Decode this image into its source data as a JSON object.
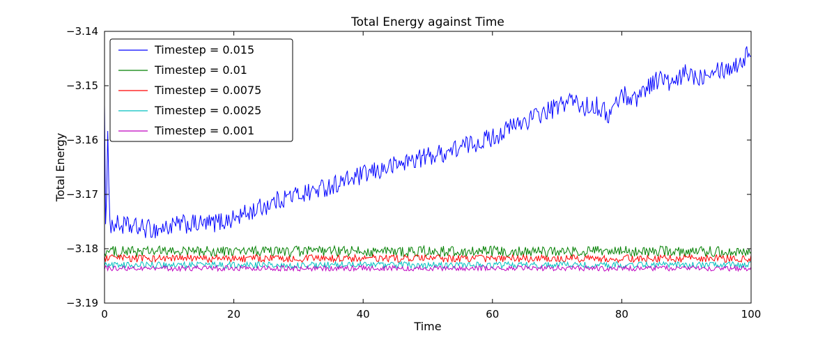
{
  "chart_data": {
    "type": "line",
    "title": "Total Energy against Time",
    "xlabel": "Time",
    "ylabel": "Total Energy",
    "xlim": [
      0,
      100
    ],
    "ylim": [
      -3.19,
      -3.14
    ],
    "xticks": [
      0,
      20,
      40,
      60,
      80,
      100
    ],
    "yticks": [
      -3.19,
      -3.18,
      -3.17,
      -3.16,
      -3.15,
      -3.14
    ],
    "grid": false,
    "legend_position": "upper left",
    "frame_color": "#000000",
    "background_color": "#ffffff",
    "series": [
      {
        "name": "Timestep = 0.015",
        "color": "#0000ff",
        "noise": 0.0018,
        "anchors_x": [
          0,
          0.2,
          0.5,
          0.9,
          1.5,
          4,
          8,
          12,
          16,
          20,
          24,
          28,
          32,
          36,
          40,
          44,
          48,
          52,
          56,
          60,
          64,
          67,
          70,
          72,
          74,
          76,
          78,
          80,
          82,
          84,
          86,
          88,
          90,
          92,
          94,
          96,
          98,
          100
        ],
        "anchors_y": [
          -3.152,
          -3.181,
          -3.16,
          -3.176,
          -3.1755,
          -3.176,
          -3.1765,
          -3.1755,
          -3.1755,
          -3.1745,
          -3.1725,
          -3.1705,
          -3.1695,
          -3.168,
          -3.1665,
          -3.165,
          -3.1635,
          -3.1625,
          -3.161,
          -3.1595,
          -3.157,
          -3.1555,
          -3.154,
          -3.1525,
          -3.154,
          -3.1535,
          -3.1555,
          -3.1515,
          -3.1525,
          -3.15,
          -3.1485,
          -3.15,
          -3.1475,
          -3.1485,
          -3.1465,
          -3.147,
          -3.146,
          -3.1435
        ]
      },
      {
        "name": "Timestep = 0.01",
        "color": "#007f00",
        "noise": 0.001,
        "anchors_x": [
          0,
          100
        ],
        "anchors_y": [
          -3.1805,
          -3.1805
        ]
      },
      {
        "name": "Timestep = 0.0075",
        "color": "#ff0000",
        "noise": 0.0007,
        "anchors_x": [
          0,
          100
        ],
        "anchors_y": [
          -3.1818,
          -3.1818
        ]
      },
      {
        "name": "Timestep = 0.0025",
        "color": "#00bfbf",
        "noise": 0.0006,
        "anchors_x": [
          0,
          100
        ],
        "anchors_y": [
          -3.183,
          -3.183
        ]
      },
      {
        "name": "Timestep = 0.001",
        "color": "#bf00bf",
        "noise": 0.0005,
        "anchors_x": [
          0,
          100
        ],
        "anchors_y": [
          -3.1836,
          -3.1836
        ]
      }
    ]
  }
}
